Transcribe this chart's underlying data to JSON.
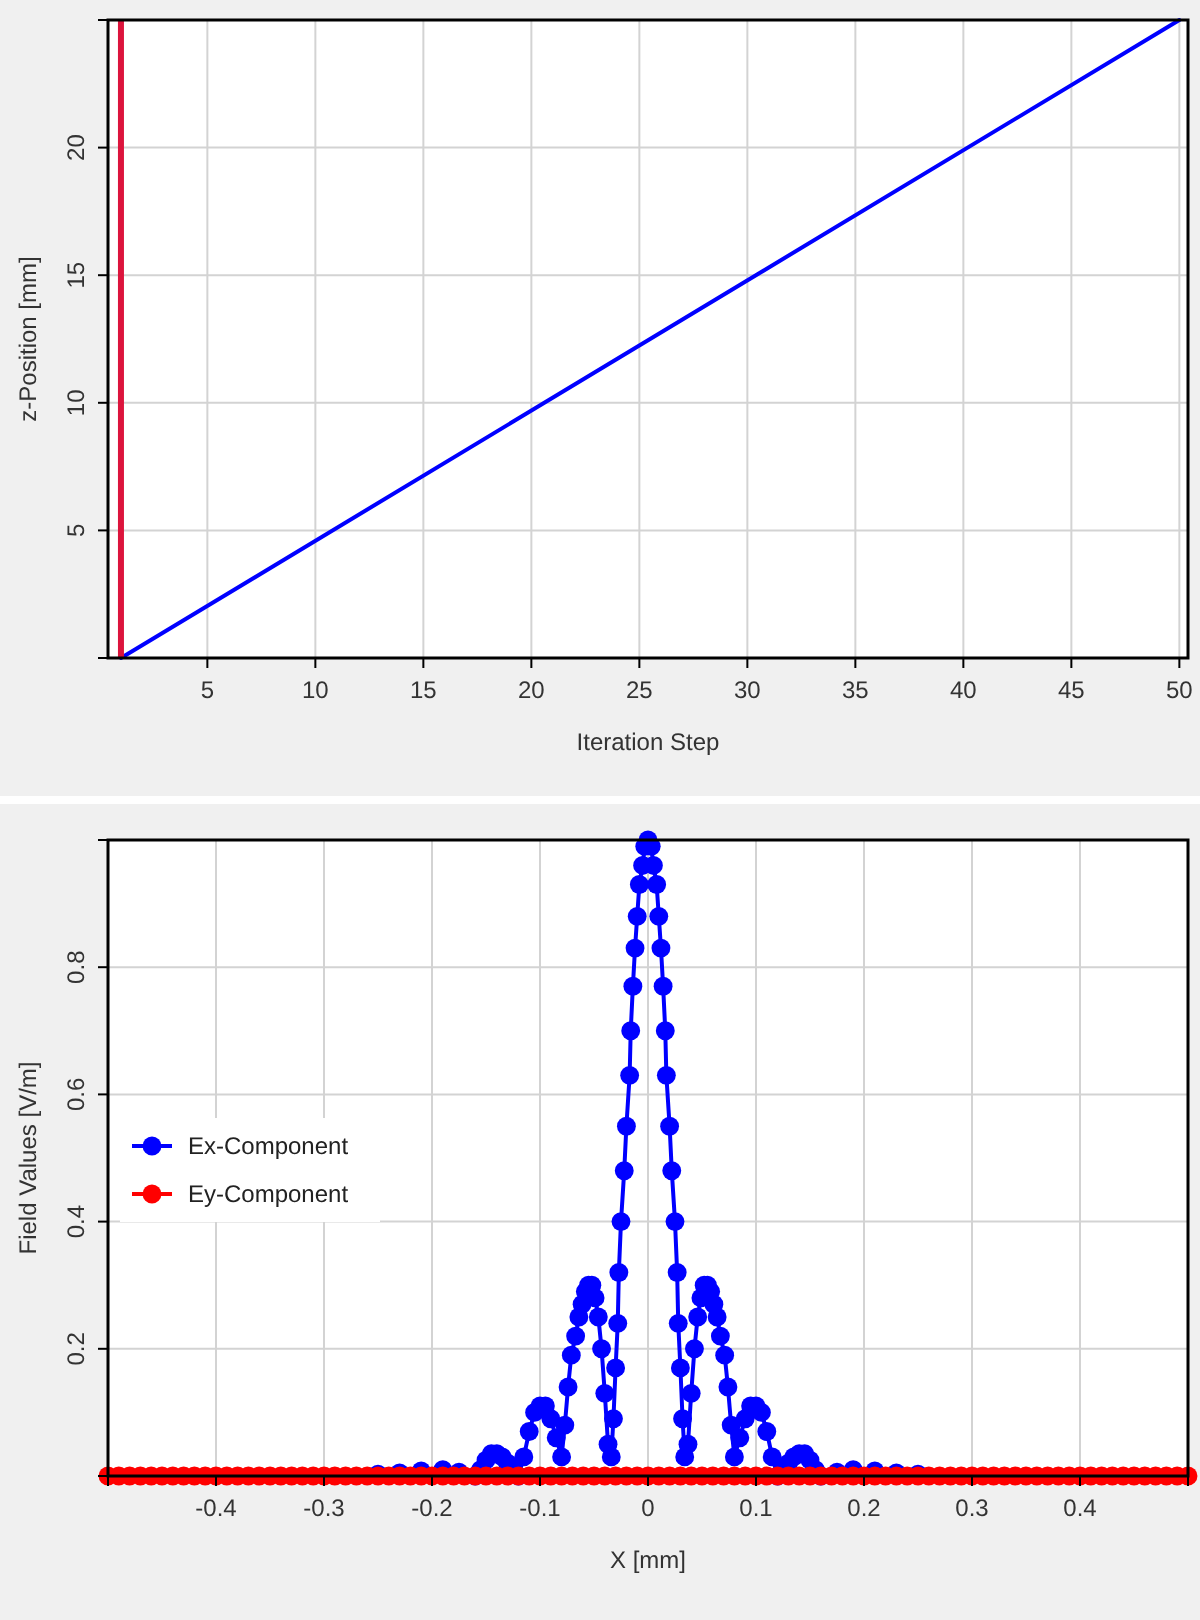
{
  "chart_data": [
    {
      "type": "line",
      "xlabel": "Iteration Step",
      "ylabel": "z-Position [mm]",
      "xlim": [
        0.4,
        50.4
      ],
      "ylim": [
        0,
        25
      ],
      "xticks": [
        5,
        10,
        15,
        20,
        25,
        30,
        35,
        40,
        45,
        50
      ],
      "yticks": [
        {
          "value": 0,
          "label": null
        },
        5,
        10,
        15,
        20,
        {
          "value": 25,
          "label": null
        }
      ],
      "grid": true,
      "series": [
        {
          "color": "#0000ff",
          "x": [
            1,
            50
          ],
          "values": [
            0,
            25
          ]
        }
      ],
      "ref_lines": [
        {
          "axis": "x",
          "value": 1,
          "color": "#dc143c"
        }
      ]
    },
    {
      "type": "line",
      "xlabel": "X [mm]",
      "ylabel": "Field Values [V/m]",
      "xlim": [
        -0.5,
        0.5
      ],
      "ylim": [
        0,
        1
      ],
      "xticks": [
        {
          "value": -0.5,
          "label": null
        },
        -0.4,
        -0.3,
        -0.2,
        -0.1,
        0,
        0.1,
        0.2,
        0.3,
        0.4,
        {
          "value": 0.5,
          "label": null
        }
      ],
      "yticks": [
        {
          "value": 0,
          "label": null
        },
        0.2,
        0.4,
        0.6,
        0.8,
        {
          "value": 1,
          "label": null
        }
      ],
      "grid": true,
      "legend": "left",
      "marker": "circle",
      "series": [
        {
          "name": "Ex-Component",
          "color": "#0000ff",
          "x": [
            -0.25,
            -0.23,
            -0.21,
            -0.19,
            -0.175,
            -0.16,
            -0.155,
            -0.15,
            -0.145,
            -0.14,
            -0.135,
            -0.13,
            -0.125,
            -0.12,
            -0.115,
            -0.11,
            -0.105,
            -0.1,
            -0.095,
            -0.09,
            -0.085,
            -0.08,
            -0.077,
            -0.074,
            -0.071,
            -0.067,
            -0.064,
            -0.061,
            -0.058,
            -0.055,
            -0.052,
            -0.049,
            -0.046,
            -0.043,
            -0.04,
            -0.037,
            -0.034,
            -0.032,
            -0.03,
            -0.028,
            -0.027,
            -0.025,
            -0.022,
            -0.02,
            -0.017,
            -0.016,
            -0.014,
            -0.012,
            -0.01,
            -0.008,
            -0.005,
            -0.003,
            0,
            0.003,
            0.005,
            0.008,
            0.01,
            0.012,
            0.014,
            0.016,
            0.017,
            0.02,
            0.022,
            0.025,
            0.027,
            0.028,
            0.03,
            0.032,
            0.034,
            0.037,
            0.04,
            0.043,
            0.046,
            0.049,
            0.052,
            0.055,
            0.058,
            0.061,
            0.064,
            0.067,
            0.071,
            0.074,
            0.077,
            0.08,
            0.085,
            0.09,
            0.095,
            0.1,
            0.105,
            0.11,
            0.115,
            0.12,
            0.125,
            0.13,
            0.135,
            0.14,
            0.145,
            0.15,
            0.155,
            0.16,
            0.175,
            0.19,
            0.21,
            0.23,
            0.25
          ],
          "values": [
            0.003,
            0.005,
            0.008,
            0.01,
            0.006,
            0,
            0.01,
            0.025,
            0.035,
            0.035,
            0.03,
            0.02,
            0.01,
            0,
            0.03,
            0.07,
            0.1,
            0.11,
            0.11,
            0.09,
            0.06,
            0.03,
            0.08,
            0.14,
            0.19,
            0.22,
            0.25,
            0.27,
            0.29,
            0.3,
            0.3,
            0.28,
            0.25,
            0.2,
            0.13,
            0.05,
            0.03,
            0.09,
            0.17,
            0.24,
            0.32,
            0.4,
            0.48,
            0.55,
            0.63,
            0.7,
            0.77,
            0.83,
            0.88,
            0.93,
            0.96,
            0.99,
            1,
            0.99,
            0.96,
            0.93,
            0.88,
            0.83,
            0.77,
            0.7,
            0.63,
            0.55,
            0.48,
            0.4,
            0.32,
            0.24,
            0.17,
            0.09,
            0.03,
            0.05,
            0.13,
            0.2,
            0.25,
            0.28,
            0.3,
            0.3,
            0.29,
            0.27,
            0.25,
            0.22,
            0.19,
            0.14,
            0.08,
            0.03,
            0.06,
            0.09,
            0.11,
            0.11,
            0.1,
            0.07,
            0.03,
            0,
            0.01,
            0.02,
            0.03,
            0.035,
            0.035,
            0.025,
            0.01,
            0,
            0.006,
            0.01,
            0.008,
            0.005,
            0.003
          ]
        },
        {
          "name": "Ey-Component",
          "color": "#ff0000",
          "x": [
            -0.5,
            -0.49,
            -0.48,
            -0.47,
            -0.46,
            -0.45,
            -0.44,
            -0.43,
            -0.42,
            -0.41,
            -0.4,
            -0.39,
            -0.38,
            -0.37,
            -0.36,
            -0.35,
            -0.34,
            -0.33,
            -0.32,
            -0.31,
            -0.3,
            -0.29,
            -0.28,
            -0.27,
            -0.26,
            -0.25,
            -0.24,
            -0.23,
            -0.22,
            -0.21,
            -0.2,
            -0.19,
            -0.18,
            -0.17,
            -0.16,
            -0.15,
            -0.14,
            -0.13,
            -0.12,
            -0.11,
            -0.1,
            -0.09,
            -0.08,
            -0.07,
            -0.06,
            -0.05,
            -0.04,
            -0.03,
            -0.02,
            -0.01,
            0,
            0.01,
            0.02,
            0.03,
            0.04,
            0.05,
            0.06,
            0.07,
            0.08,
            0.09,
            0.1,
            0.11,
            0.12,
            0.13,
            0.14,
            0.15,
            0.16,
            0.17,
            0.18,
            0.19,
            0.2,
            0.21,
            0.22,
            0.23,
            0.24,
            0.25,
            0.26,
            0.27,
            0.28,
            0.29,
            0.3,
            0.31,
            0.32,
            0.33,
            0.34,
            0.35,
            0.36,
            0.37,
            0.38,
            0.39,
            0.4,
            0.41,
            0.42,
            0.43,
            0.44,
            0.45,
            0.46,
            0.47,
            0.48,
            0.49,
            0.5
          ],
          "values": [
            0,
            0,
            0,
            0,
            0,
            0,
            0,
            0,
            0,
            0,
            0,
            0,
            0,
            0,
            0,
            0,
            0,
            0,
            0,
            0,
            0,
            0,
            0,
            0,
            0,
            0,
            0,
            0,
            0,
            0,
            0,
            0,
            0,
            0,
            0,
            0,
            0,
            0,
            0,
            0,
            0,
            0,
            0,
            0,
            0,
            0,
            0,
            0,
            0,
            0,
            0,
            0,
            0,
            0,
            0,
            0,
            0,
            0,
            0,
            0,
            0,
            0,
            0,
            0,
            0,
            0,
            0,
            0,
            0,
            0,
            0,
            0,
            0,
            0,
            0,
            0,
            0,
            0,
            0,
            0,
            0,
            0,
            0,
            0,
            0,
            0,
            0,
            0,
            0,
            0,
            0,
            0,
            0,
            0,
            0,
            0,
            0,
            0,
            0,
            0,
            0
          ]
        }
      ]
    }
  ]
}
